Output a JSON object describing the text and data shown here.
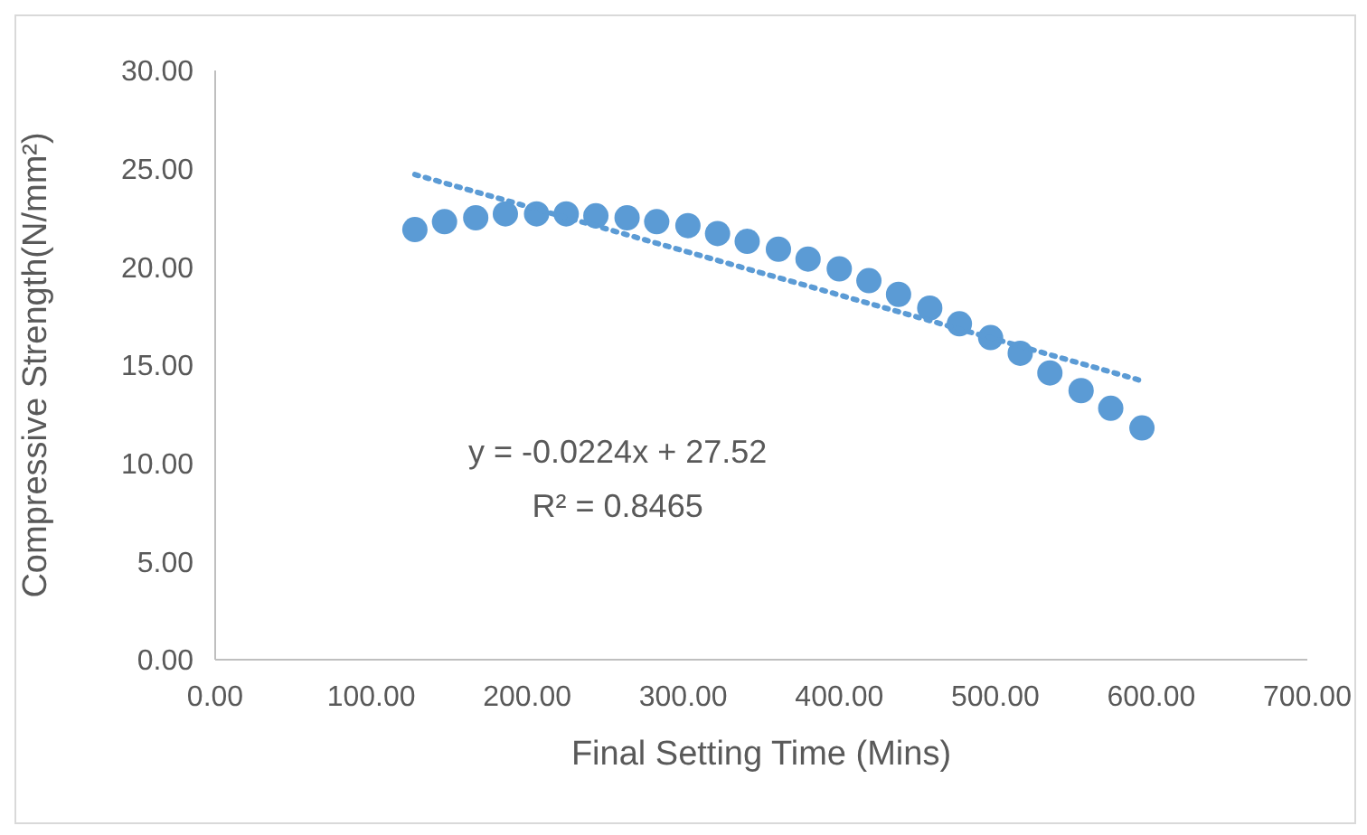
{
  "chart_data": {
    "type": "scatter",
    "xlabel": "Final Setting Time (Mins)",
    "ylabel": "Compressive Strength(N/mm²)",
    "xlim": [
      0,
      700
    ],
    "xticks": [
      {
        "value": 0,
        "label": "0.00"
      },
      {
        "value": 100,
        "label": "100.00"
      },
      {
        "value": 200,
        "label": "200.00"
      },
      {
        "value": 300,
        "label": "300.00"
      },
      {
        "value": 400,
        "label": "400.00"
      },
      {
        "value": 500,
        "label": "500.00"
      },
      {
        "value": 600,
        "label": "600.00"
      },
      {
        "value": 700,
        "label": "700.00"
      }
    ],
    "ylim": [
      0,
      30
    ],
    "yticks": [
      {
        "value": 0,
        "label": "0.00"
      },
      {
        "value": 5,
        "label": "5.00"
      },
      {
        "value": 10,
        "label": "10.00"
      },
      {
        "value": 15,
        "label": "15.00"
      },
      {
        "value": 20,
        "label": "20.00"
      },
      {
        "value": 25,
        "label": "25.00"
      },
      {
        "value": 30,
        "label": "30.00"
      }
    ],
    "grid": false,
    "annotations": [
      "y = -0.0224x + 27.52",
      "R² = 0.8465"
    ],
    "series": [
      {
        "color": "#5b9bd5",
        "marker": "circle",
        "x": [
          128,
          147,
          167,
          186,
          206,
          225,
          244,
          264,
          283,
          303,
          322,
          341,
          361,
          380,
          400,
          419,
          438,
          458,
          477,
          497,
          516,
          535,
          555,
          574,
          594
        ],
        "values": [
          21.9,
          22.3,
          22.5,
          22.7,
          22.7,
          22.7,
          22.6,
          22.5,
          22.3,
          22.1,
          21.7,
          21.3,
          20.9,
          20.4,
          19.9,
          19.3,
          18.6,
          17.9,
          17.1,
          16.4,
          15.6,
          14.6,
          13.7,
          12.8,
          11.8
        ]
      },
      {
        "type": "line",
        "color": "#5b9bd5",
        "marker": "none",
        "line_style": "dotted",
        "x": [
          128,
          594
        ],
        "values": [
          24.7,
          14.2
        ]
      }
    ]
  }
}
